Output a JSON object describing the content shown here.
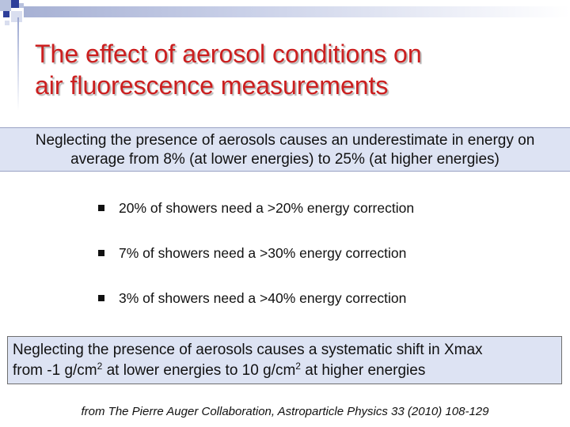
{
  "title": {
    "line1": "The effect of aerosol conditions on",
    "line2": "air fluorescence measurements"
  },
  "box1": {
    "line1": "Neglecting the presence of aerosols causes an underestimate in energy on",
    "line2": "average from 8% (at lower energies) to 25% (at higher energies)"
  },
  "bullets": [
    {
      "text": "20% of showers need a >20% energy correction"
    },
    {
      "text": "7% of showers need a >30%  energy correction"
    },
    {
      "text": "3% of showers need a >40% energy correction"
    }
  ],
  "box2": {
    "line1": "Neglecting the presence of aerosols causes a systematic shift in Xmax",
    "line2_a": "from -1 g/cm",
    "line2_sup1": "2",
    "line2_b": " at lower energies to 10 g/cm",
    "line2_sup2": "2",
    "line2_c": " at higher energies"
  },
  "citation": "from The Pierre Auger Collaboration, Astroparticle Physics 33 (2010) 108-129",
  "colors": {
    "title": "#cc1f1f",
    "box_fill": "#dde3f3",
    "accent": "#2e3f9a"
  }
}
